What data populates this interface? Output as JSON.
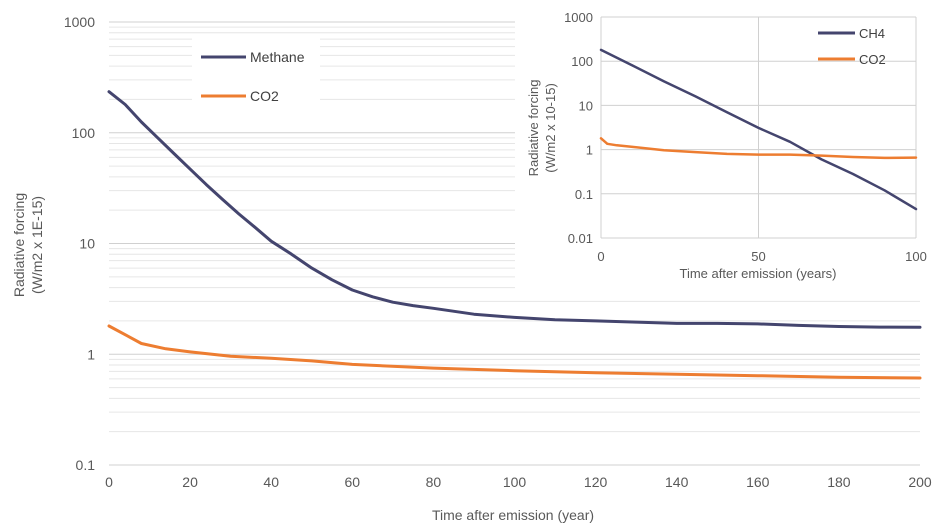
{
  "chart_data": [
    {
      "type": "line",
      "title": "",
      "xlabel": "Time after emission (year)",
      "ylabel": "Radiative forcing (W/m2 x 1E-15)",
      "ylabel_lines": [
        "Radiative forcing",
        "(W/m2 x 1E-15)"
      ],
      "yscale": "log",
      "xlim": [
        0,
        200
      ],
      "ylim": [
        0.1,
        1000
      ],
      "x_ticks": [
        "0",
        "20",
        "40",
        "60",
        "80",
        "100",
        "120",
        "140",
        "160",
        "180",
        "200"
      ],
      "y_ticks": [
        "0.1",
        "1",
        "10",
        "100",
        "1000"
      ],
      "grid": "horizontal, major and minor",
      "legend": "upper-left",
      "series": [
        {
          "name": "Methane",
          "color": "#44456e",
          "x": [
            0,
            4,
            8,
            12,
            16,
            20,
            24,
            28,
            32,
            36,
            40,
            45,
            50,
            55,
            60,
            65,
            70,
            75,
            80,
            90,
            100,
            110,
            120,
            130,
            140,
            150,
            160,
            170,
            180,
            190,
            200
          ],
          "y": [
            235,
            180,
            125,
            90,
            65,
            47,
            34,
            25,
            18.5,
            14,
            10.5,
            8,
            6,
            4.7,
            3.8,
            3.3,
            2.95,
            2.75,
            2.6,
            2.3,
            2.15,
            2.05,
            2.0,
            1.95,
            1.9,
            1.9,
            1.88,
            1.82,
            1.78,
            1.76,
            1.75
          ]
        },
        {
          "name": "CO2",
          "color": "#ed7d31",
          "x": [
            0,
            4,
            8,
            14,
            20,
            30,
            40,
            50,
            60,
            80,
            100,
            120,
            140,
            160,
            180,
            200
          ],
          "y": [
            1.8,
            1.5,
            1.25,
            1.12,
            1.05,
            0.96,
            0.92,
            0.87,
            0.81,
            0.75,
            0.71,
            0.68,
            0.66,
            0.64,
            0.62,
            0.61
          ]
        }
      ]
    },
    {
      "type": "line",
      "title": "",
      "xlabel": "Time after emission (years)",
      "ylabel": "Radiative forcing (W/m2 x 10-15)",
      "ylabel_lines": [
        "Radiative forcing",
        "(W/m2 x 10-15)"
      ],
      "yscale": "log",
      "xlim": [
        0,
        100
      ],
      "ylim": [
        0.01,
        1000
      ],
      "x_ticks": [
        "0",
        "50",
        "100"
      ],
      "y_ticks": [
        "0.01",
        "0.1",
        "1",
        "10",
        "100",
        "1000"
      ],
      "grid": "major horizontal and vertical",
      "legend": "upper-right",
      "series": [
        {
          "name": "CH4",
          "color": "#44456e",
          "x": [
            0,
            10,
            20,
            30,
            40,
            50,
            60,
            70,
            80,
            90,
            100
          ],
          "y": [
            180,
            80,
            35,
            16,
            7,
            3.1,
            1.5,
            0.6,
            0.28,
            0.12,
            0.045
          ]
        },
        {
          "name": "CO2",
          "color": "#ed7d31",
          "x": [
            0,
            2,
            5,
            10,
            20,
            30,
            40,
            50,
            60,
            70,
            80,
            90,
            100
          ],
          "y": [
            1.8,
            1.35,
            1.25,
            1.15,
            0.97,
            0.88,
            0.8,
            0.77,
            0.77,
            0.73,
            0.68,
            0.65,
            0.66
          ]
        }
      ]
    }
  ]
}
